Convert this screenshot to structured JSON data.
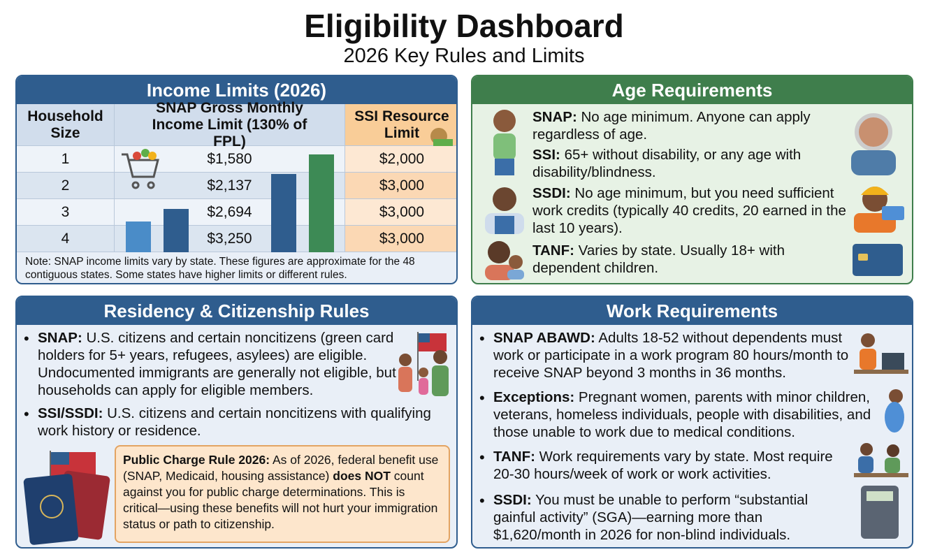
{
  "header": {
    "title": "Eligibility Dashboard",
    "subtitle": "2026 Key Rules and Limits"
  },
  "income_limits": {
    "title": "Income Limits (2026)",
    "table": {
      "columns": [
        "Household Size",
        "SNAP Gross Monthly Income Limit (130% of FPL)",
        "SSI Resource Limit"
      ],
      "rows": [
        [
          "1",
          "$1,580",
          "$2,000"
        ],
        [
          "2",
          "$2,137",
          "$3,000"
        ],
        [
          "3",
          "$2,694",
          "$3,000"
        ],
        [
          "4",
          "$3,250",
          "$3,000"
        ]
      ]
    },
    "note": "Note: SNAP income limits vary by state. These figures are approximate for the 48 contiguous states. Some states have higher limits or different rules."
  },
  "age_requirements": {
    "title": "Age Requirements",
    "items": [
      {
        "label": "SNAP:",
        "text": "No age minimum. Anyone can apply regardless of age."
      },
      {
        "label": "SSI:",
        "text": "65+ without disability, or any age with disability/blindness."
      },
      {
        "label": "SSDI:",
        "text": "No age minimum, but you need sufficient work credits (typically 40 credits, 20 earned in the last 10 years)."
      },
      {
        "label": "TANF:",
        "text": "Varies by state. Usually 18+ with dependent children."
      }
    ]
  },
  "residency": {
    "title": "Residency & Citizenship Rules",
    "items": [
      {
        "label": "SNAP:",
        "text": "U.S. citizens and certain noncitizens (green card holders for 5+ years, refugees, asylees) are eligible. Undocumented immigrants are generally not eligible, but households can apply for eligible members."
      },
      {
        "label": "SSI/SSDI:",
        "text": "U.S. citizens and certain noncitizens with qualifying work history or residence."
      }
    ],
    "callout": {
      "label": "Public Charge Rule 2026:",
      "parts": [
        "As of 2026, federal benefit use (SNAP, Medicaid, housing assistance)",
        "does NOT",
        "count against you for public charge determinations. This is critical—using these benefits will not hurt your immigration status or path to citizenship."
      ]
    }
  },
  "work_requirements": {
    "title": "Work Requirements",
    "items": [
      {
        "label": "SNAP ABAWD:",
        "text": "Adults 18-52 without dependents must work or participate in a work program 80 hours/month to receive SNAP beyond 3 months in 36 months."
      },
      {
        "label": "Exceptions:",
        "text": "Pregnant women, parents with minor children, veterans, homeless individuals, people with disabilities, and those unable to work due to medical conditions."
      },
      {
        "label": "TANF:",
        "text": "Work requirements vary by state. Most require 20-30 hours/week of work or work activities."
      },
      {
        "label": "SSDI:",
        "text": "You must be unable to perform “substantial gainful activity” (SGA)—earning more than $1,620/month in 2026 for non-blind individuals."
      }
    ]
  }
}
